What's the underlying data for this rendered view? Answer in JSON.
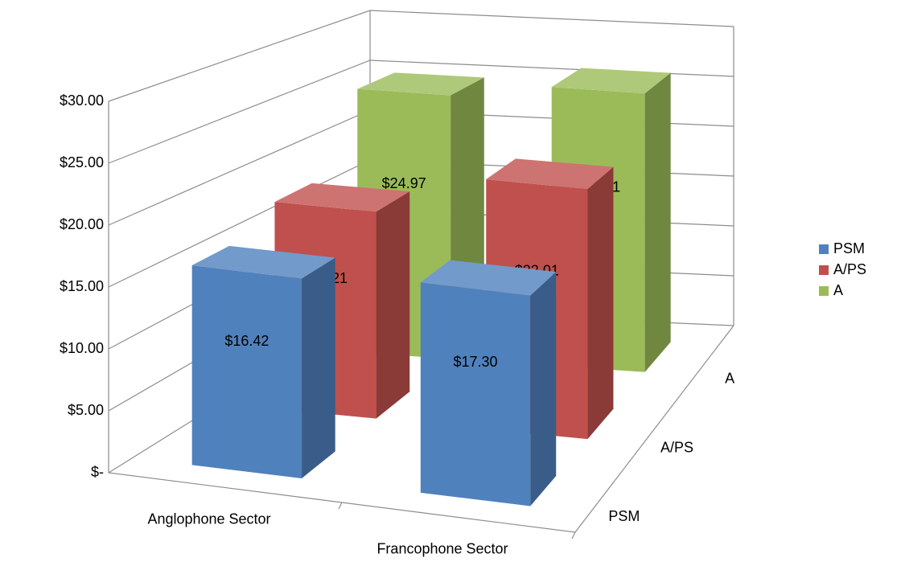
{
  "chart_data": {
    "type": "bar3d",
    "categories": [
      "Anglophone Sector",
      "Francophone Sector"
    ],
    "series": [
      {
        "name": "PSM",
        "color": "#4f81bd",
        "values": [
          16.42,
          17.3
        ],
        "value_labels": [
          "$16.42",
          "$17.30"
        ]
      },
      {
        "name": "A/PS",
        "color": "#c0504d",
        "values": [
          18.21,
          22.01
        ],
        "value_labels": [
          "$18.21",
          "$22.01"
        ]
      },
      {
        "name": "A",
        "color": "#9bbb59",
        "values": [
          24.97,
          26.41
        ],
        "value_labels": [
          "$24.97",
          "$26.41"
        ]
      }
    ],
    "ylim": [
      0,
      30
    ],
    "yticks": [
      {
        "value": 0,
        "label": "$-"
      },
      {
        "value": 5,
        "label": "$5.00"
      },
      {
        "value": 10,
        "label": "$10.00"
      },
      {
        "value": 15,
        "label": "$15.00"
      },
      {
        "value": 20,
        "label": "$20.00"
      },
      {
        "value": 25,
        "label": "$25.00"
      },
      {
        "value": 30,
        "label": "$30.00"
      }
    ],
    "grid": true,
    "legend": "right"
  }
}
